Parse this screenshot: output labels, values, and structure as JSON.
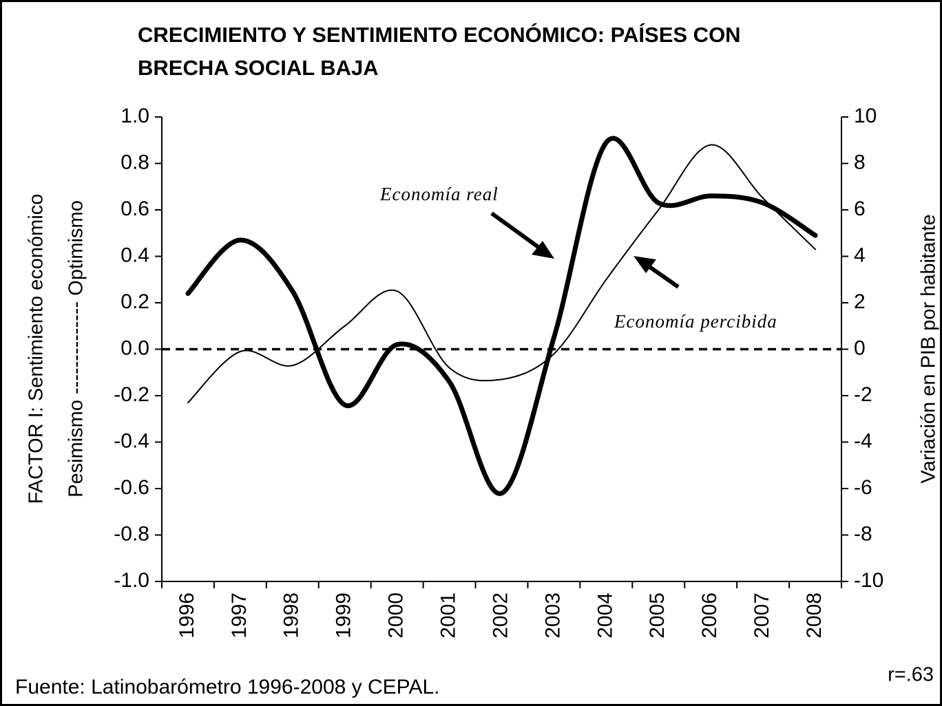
{
  "chart_data": {
    "type": "line",
    "title": [
      "CRECIMIENTO Y SENTIMIENTO ECONÓMICO: PAÍSES CON",
      "BRECHA SOCIAL BAJA"
    ],
    "y_label": [
      "Pesimismo -------------- Optimismo",
      "FACTOR I: Sentimiento económico"
    ],
    "y2_label": "Variación en PIB por habitante",
    "source": "Fuente: Latinobarómetro 1996-2008 y CEPAL.",
    "correlation": "r=.63",
    "categories": [
      "1996",
      "1997",
      "1998",
      "1999",
      "2000",
      "2001",
      "2002",
      "2003",
      "2004",
      "2005",
      "2006",
      "2007",
      "2008"
    ],
    "series": [
      {
        "name": "Economía real",
        "color": "#000000",
        "axis": "y2",
        "values": [
          2.4,
          4.7,
          2.5,
          -2.4,
          0.2,
          -1.4,
          -6.2,
          0.5,
          8.9,
          6.3,
          6.6,
          6.3,
          4.9
        ]
      },
      {
        "name": "Economía percibida",
        "color": "#000000",
        "values": [
          -0.23,
          -0.01,
          -0.07,
          0.1,
          0.25,
          -0.08,
          -0.13,
          -0.02,
          0.3,
          0.6,
          0.88,
          0.65,
          0.43
        ]
      }
    ],
    "reference_line": 0,
    "ylim": [
      -1,
      1
    ],
    "yticks": [
      {
        "value": -1,
        "label": "-1.0"
      },
      -0.8,
      -0.6,
      -0.4,
      -0.2,
      {
        "value": 0,
        "label": "0.0"
      },
      0.2,
      0.4,
      0.6,
      0.8,
      {
        "value": 1,
        "label": "1.0"
      }
    ],
    "y2lim": [
      -10,
      10
    ],
    "y2ticks": [
      -10,
      -8,
      -6,
      -4,
      -2,
      0,
      2,
      4,
      6,
      8,
      10
    ]
  }
}
